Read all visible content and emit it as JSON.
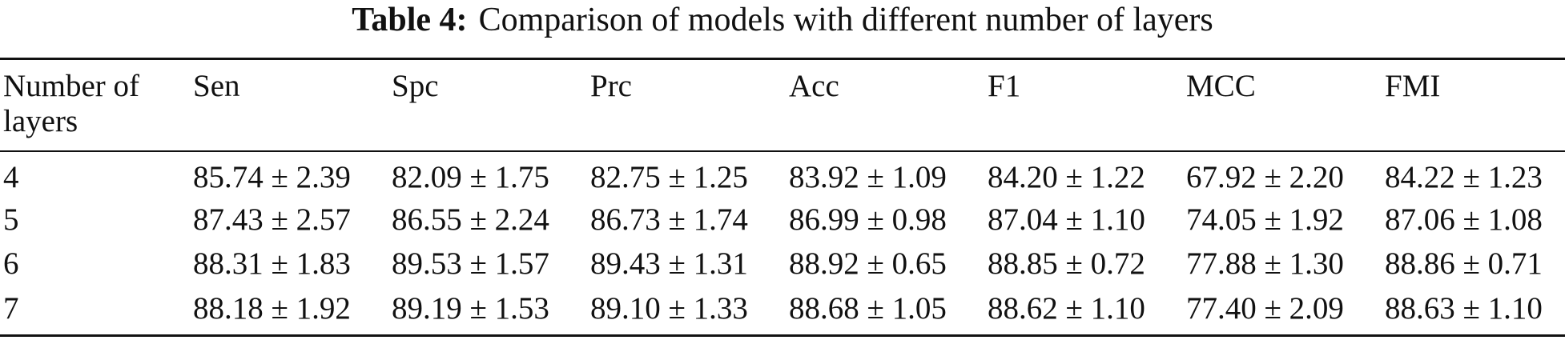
{
  "caption": {
    "label": "Table 4:",
    "text": "Comparison of models with different number of layers"
  },
  "table": {
    "headers": [
      "Number of",
      "layers",
      "Sen",
      "Spc",
      "Prc",
      "Acc",
      "F1",
      "MCC",
      "FMI"
    ],
    "rows": [
      [
        "4",
        "85.74 ± 2.39",
        "82.09 ± 1.75",
        "82.75 ± 1.25",
        "83.92 ± 1.09",
        "84.20 ± 1.22",
        "67.92 ± 2.20",
        "84.22 ± 1.23"
      ],
      [
        "5",
        "87.43 ± 2.57",
        "86.55 ± 2.24",
        "86.73 ± 1.74",
        "86.99 ± 0.98",
        "87.04 ± 1.10",
        "74.05 ± 1.92",
        "87.06 ± 1.08"
      ],
      [
        "6",
        "88.31 ± 1.83",
        "89.53 ± 1.57",
        "89.43 ± 1.31",
        "88.92 ± 0.65",
        "88.85 ± 0.72",
        "77.88 ± 1.30",
        "88.86 ± 0.71"
      ],
      [
        "7",
        "88.18 ± 1.92",
        "89.19 ± 1.53",
        "89.10 ± 1.33",
        "88.68 ± 1.05",
        "88.62 ± 1.10",
        "77.40 ± 2.09",
        "88.63 ± 1.10"
      ]
    ]
  }
}
